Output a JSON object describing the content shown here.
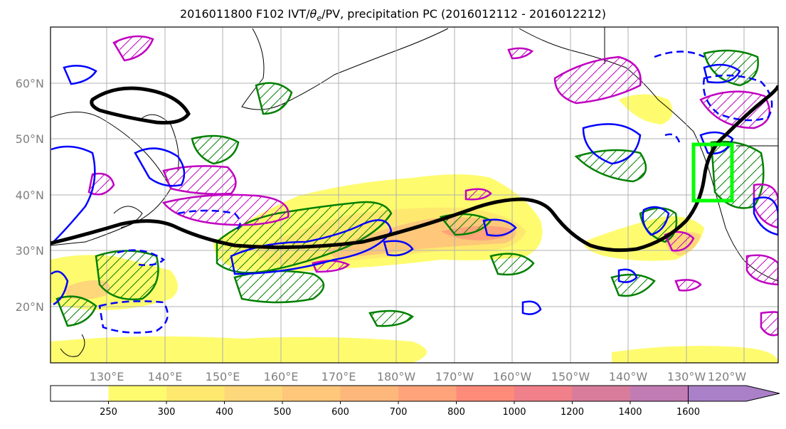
{
  "title": {
    "prefix": "2016011800 F102 IVT/",
    "theta": "θ",
    "theta_sub": "e",
    "suffix": "/PV, precipitation PC (2016012112 - 2016012212)"
  },
  "map": {
    "lat_labels": [
      "60°N",
      "50°N",
      "40°N",
      "30°N",
      "20°N"
    ],
    "lon_labels": [
      "130°E",
      "140°E",
      "150°E",
      "160°E",
      "170°E",
      "180°W",
      "170°W",
      "160°W",
      "150°W",
      "140°W",
      "130°W",
      "120°W"
    ]
  },
  "colorbar": {
    "levels": [
      "250",
      "300",
      "400",
      "500",
      "600",
      "700",
      "800",
      "1000",
      "1200",
      "1400",
      "1600"
    ],
    "colors": [
      "#ffffff",
      "#fefc6e",
      "#fee96e",
      "#fed77a",
      "#fec77a",
      "#feb77a",
      "#fea37a",
      "#fe8b7a",
      "#f0808a",
      "#d87c9c",
      "#c27cb4",
      "#aa80c8"
    ]
  },
  "legend_colors": {
    "thick_line": "#000000",
    "blue": "#0000ff",
    "green": "#008000",
    "magenta": "#c000c0",
    "target_box": "#00ff00"
  }
}
